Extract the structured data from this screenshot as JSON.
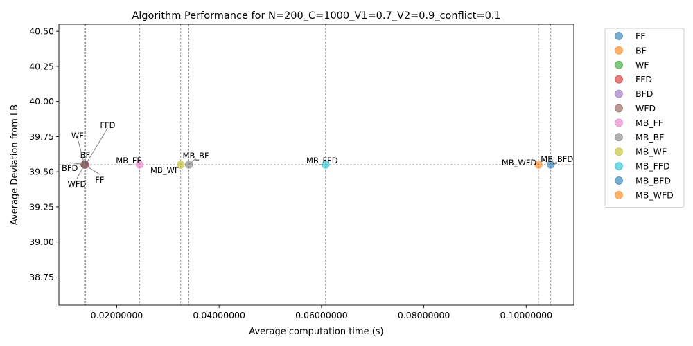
{
  "chart_data": {
    "type": "scatter",
    "title": "Algorithm Performance for N=200_C=1000_V1=0.7_V2=0.9_conflict=0.1",
    "xlabel": "Average computation time (s)",
    "ylabel": "Average Deviation from LB",
    "xlim": [
      0.0087,
      0.1093
    ],
    "ylim": [
      38.55,
      40.55
    ],
    "xticks": [
      0.02,
      0.04,
      0.06,
      0.08,
      0.1
    ],
    "xtick_labels": [
      "0.02000000",
      "0.04000000",
      "0.06000000",
      "0.08000000",
      "0.10000000"
    ],
    "yticks": [
      38.75,
      39.0,
      39.25,
      39.5,
      39.75,
      40.0,
      40.25,
      40.5
    ],
    "ytick_labels": [
      "38.75",
      "39.00",
      "39.25",
      "39.50",
      "39.75",
      "40.00",
      "40.25",
      "40.50"
    ],
    "grid": false,
    "legend_position": "outside-right",
    "reference_line_y": 39.55,
    "series": [
      {
        "name": "FF",
        "x": 0.0137,
        "y": 39.55,
        "color": "#1f77b4"
      },
      {
        "name": "BF",
        "x": 0.0137,
        "y": 39.55,
        "color": "#ff7f0e"
      },
      {
        "name": "WF",
        "x": 0.0137,
        "y": 39.55,
        "color": "#2ca02c"
      },
      {
        "name": "FFD",
        "x": 0.0139,
        "y": 39.55,
        "color": "#d62728"
      },
      {
        "name": "BFD",
        "x": 0.0138,
        "y": 39.55,
        "color": "#9467bd"
      },
      {
        "name": "WFD",
        "x": 0.0137,
        "y": 39.55,
        "color": "#8c564b"
      },
      {
        "name": "MB_FF",
        "x": 0.0245,
        "y": 39.55,
        "color": "#e377c2"
      },
      {
        "name": "MB_BF",
        "x": 0.0341,
        "y": 39.55,
        "color": "#7f7f7f"
      },
      {
        "name": "MB_WF",
        "x": 0.0325,
        "y": 39.55,
        "color": "#bcbd22"
      },
      {
        "name": "MB_FFD",
        "x": 0.0608,
        "y": 39.55,
        "color": "#17becf"
      },
      {
        "name": "MB_BFD",
        "x": 0.1048,
        "y": 39.55,
        "color": "#1f77b4"
      },
      {
        "name": "MB_WFD",
        "x": 0.1024,
        "y": 39.55,
        "color": "#ff7f0e"
      }
    ]
  }
}
